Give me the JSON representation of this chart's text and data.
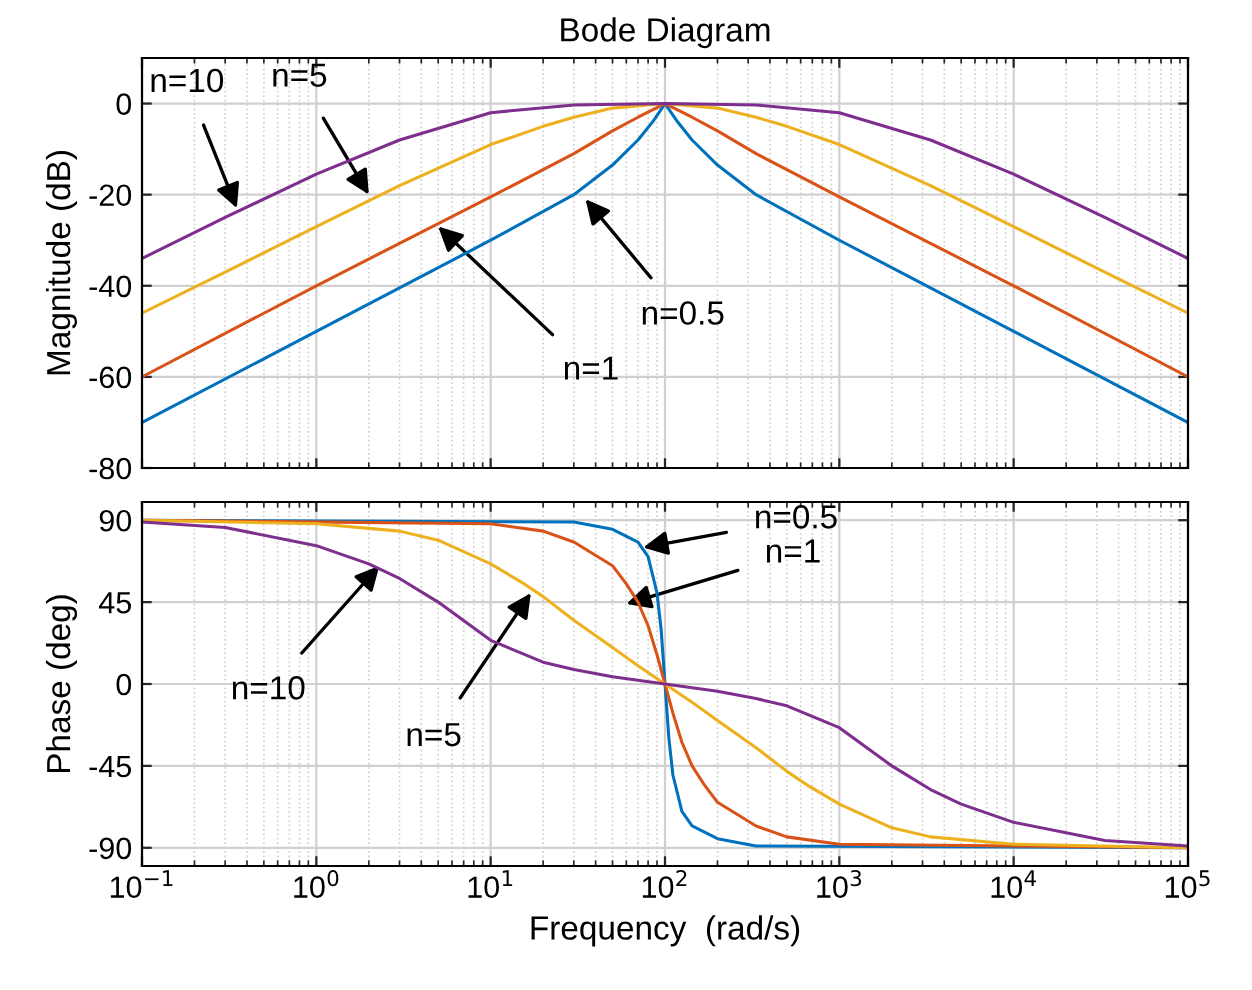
{
  "chart_data": [
    {
      "type": "line",
      "title": "Bode Diagram",
      "ylabel": "Magnitude (dB)",
      "xlim": [
        0.1,
        100000
      ],
      "ylim": [
        -80,
        10
      ],
      "log": "x",
      "grid": true,
      "tick_labels": "y",
      "xticks": [
        {
          "value": 0.1,
          "label": null
        },
        {
          "value": 1,
          "label": null
        },
        {
          "value": 10,
          "label": null
        },
        {
          "value": 100,
          "label": null
        },
        {
          "value": 1000,
          "label": null
        },
        {
          "value": 10000,
          "label": null
        },
        {
          "value": 100000,
          "label": null
        }
      ],
      "yticks": [
        -80,
        -60,
        -40,
        -20,
        0
      ],
      "series": [
        {
          "color": "#0072bd",
          "x": [
            0.1,
            1,
            10,
            30,
            50,
            70,
            85,
            100,
            118,
            143,
            200,
            333,
            1000,
            10000,
            100000
          ],
          "values": [
            -70,
            -50,
            -30,
            -20,
            -13.5,
            -8,
            -4,
            0,
            -4,
            -8,
            -13.5,
            -20,
            -30,
            -50,
            -70
          ]
        },
        {
          "color": "#d95319",
          "x": [
            0.1,
            1,
            10,
            30,
            50,
            70,
            100,
            143,
            200,
            333,
            1000,
            10000,
            100000
          ],
          "values": [
            -60,
            -40,
            -20.5,
            -11,
            -6,
            -3,
            0,
            -3,
            -6,
            -11,
            -20.5,
            -40,
            -60
          ]
        },
        {
          "color": "#edb120",
          "x": [
            0.1,
            0.3,
            1,
            3,
            10,
            20,
            30,
            50,
            100,
            200,
            333,
            500,
            1000,
            3333,
            10000,
            33333,
            100000
          ],
          "values": [
            -46,
            -37,
            -27,
            -18,
            -9,
            -5,
            -3,
            -1,
            0,
            -1,
            -3,
            -5,
            -9,
            -18,
            -27,
            -37,
            -46
          ]
        },
        {
          "color": "#7e2f8e",
          "x": [
            0.1,
            0.3,
            1,
            3,
            10,
            30,
            100,
            333,
            1000,
            3333,
            10000,
            33333,
            100000
          ],
          "values": [
            -34,
            -25,
            -15.5,
            -8,
            -2,
            -0.3,
            0,
            -0.3,
            -2,
            -8,
            -15.5,
            -25,
            -34
          ]
        }
      ],
      "annotations": [
        {
          "text": "n=10",
          "x": 0.35,
          "y": -23
        },
        {
          "text": "n=5",
          "x": 2,
          "y": -20
        },
        {
          "text": "n=1",
          "x": 5,
          "y": -27
        },
        {
          "text": "n=0.5",
          "x": 35,
          "y": -21
        }
      ]
    },
    {
      "type": "line",
      "ylabel": "Phase (deg)",
      "xlabel": "Frequency  (rad/s)",
      "xlim": [
        0.1,
        100000
      ],
      "ylim": [
        -100,
        100
      ],
      "log": "x",
      "grid": true,
      "xticks": [
        {
          "value": 0.1,
          "label": "10$^{−1}$"
        },
        {
          "value": 1,
          "label": "10$^{0}$"
        },
        {
          "value": 10,
          "label": "10$^{1}$"
        },
        {
          "value": 100,
          "label": "10$^{2}$"
        },
        {
          "value": 1000,
          "label": "10$^{3}$"
        },
        {
          "value": 10000,
          "label": "10$^{4}$"
        },
        {
          "value": 100000,
          "label": "10$^{5}$"
        }
      ],
      "yticks": [
        -90,
        -45,
        0,
        45,
        90
      ],
      "series": [
        {
          "color": "#0072bd",
          "x": [
            0.1,
            30,
            50,
            70,
            80,
            90,
            95,
            100,
            105.3,
            111,
            125,
            143,
            200,
            333,
            100000
          ],
          "values": [
            90,
            89,
            85,
            78,
            70,
            50,
            30,
            0,
            -30,
            -50,
            -70,
            -78,
            -85,
            -89,
            -90
          ]
        },
        {
          "color": "#d95319",
          "x": [
            0.1,
            10,
            20,
            30,
            50,
            60,
            70,
            80,
            90,
            100,
            111,
            125,
            143,
            167,
            200,
            333,
            500,
            1000,
            100000
          ],
          "values": [
            90,
            88,
            84,
            78,
            65,
            55,
            45,
            32,
            16,
            0,
            -16,
            -32,
            -45,
            -55,
            -65,
            -78,
            -84,
            -88,
            -90
          ]
        },
        {
          "color": "#edb120",
          "x": [
            0.1,
            1,
            3,
            5,
            10,
            15,
            20,
            30,
            50,
            70,
            100,
            143,
            200,
            333,
            500,
            667,
            1000,
            2000,
            3333,
            10000,
            100000
          ],
          "values": [
            90,
            88,
            84,
            79,
            66,
            56,
            48,
            35,
            20,
            10,
            0,
            -10,
            -20,
            -35,
            -48,
            -56,
            -66,
            -79,
            -84,
            -88,
            -90
          ]
        },
        {
          "color": "#7e2f8e",
          "x": [
            0.1,
            0.3,
            1,
            2,
            3,
            5,
            10,
            20,
            30,
            50,
            100,
            200,
            333,
            500,
            1000,
            2000,
            3333,
            5000,
            10000,
            33333,
            100000
          ],
          "values": [
            89,
            86,
            76,
            66,
            58,
            45,
            24,
            12,
            8,
            4,
            0,
            -4,
            -8,
            -12,
            -24,
            -45,
            -58,
            -66,
            -76,
            -86,
            -89
          ]
        }
      ],
      "annotations": [
        {
          "text": "n=0.5",
          "x": 75,
          "y": 75
        },
        {
          "text": "n=1",
          "x": 60,
          "y": 44
        },
        {
          "text": "n=10",
          "x": 2.3,
          "y": 65
        },
        {
          "text": "n=5",
          "x": 17,
          "y": 50
        }
      ]
    }
  ]
}
